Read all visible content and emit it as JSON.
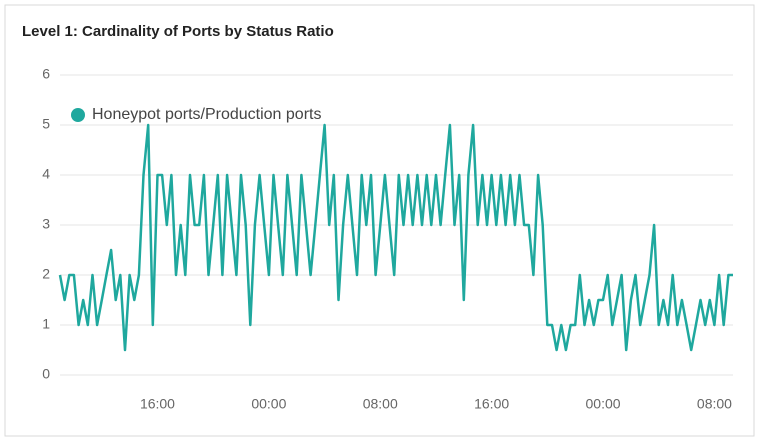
{
  "chart_data": {
    "type": "line",
    "title": "Level 1: Cardinality of Ports by Status Ratio",
    "categories": [
      null,
      null,
      null,
      null,
      null,
      null,
      null,
      null,
      null,
      null,
      null,
      null,
      null,
      null,
      null,
      null,
      null,
      null,
      null,
      null,
      null,
      "16:00",
      null,
      null,
      null,
      null,
      null,
      null,
      null,
      null,
      null,
      null,
      null,
      null,
      null,
      null,
      null,
      null,
      null,
      null,
      null,
      null,
      null,
      null,
      null,
      "00:00",
      null,
      null,
      null,
      null,
      null,
      null,
      null,
      null,
      null,
      null,
      null,
      null,
      null,
      null,
      null,
      null,
      null,
      null,
      null,
      null,
      null,
      null,
      null,
      "08:00",
      null,
      null,
      null,
      null,
      null,
      null,
      null,
      null,
      null,
      null,
      null,
      null,
      null,
      null,
      null,
      null,
      null,
      null,
      null,
      null,
      null,
      null,
      null,
      "16:00",
      null,
      null,
      null,
      null,
      null,
      null,
      null,
      null,
      null,
      null,
      null,
      null,
      null,
      null,
      null,
      null,
      null,
      null,
      null,
      null,
      null,
      null,
      null,
      "00:00",
      null,
      null,
      null,
      null,
      null,
      null,
      null,
      null,
      null,
      null,
      null,
      null,
      null,
      null,
      null,
      null,
      null,
      null,
      null,
      null,
      null,
      null,
      null,
      "08:00",
      null,
      null,
      null,
      null
    ],
    "series": [
      {
        "name": "Honeypot ports/Production ports",
        "color": "#1fa89e",
        "values": [
          2,
          1.5,
          2,
          2,
          1,
          1.5,
          1,
          2,
          1,
          1.5,
          2,
          2.5,
          1.5,
          2,
          0.5,
          2,
          1.5,
          2,
          4,
          5,
          1,
          4,
          4,
          3,
          4,
          2,
          3,
          2,
          4,
          3,
          3,
          4,
          2,
          3,
          4,
          2,
          4,
          3,
          2,
          4,
          3,
          1,
          3,
          4,
          3,
          2,
          4,
          3,
          2,
          4,
          3,
          2,
          4,
          3,
          2,
          3,
          4,
          5,
          3,
          4,
          1.5,
          3,
          4,
          3,
          2,
          4,
          3,
          4,
          2,
          3,
          4,
          3,
          2,
          4,
          3,
          4,
          3,
          4,
          3,
          4,
          3,
          4,
          3,
          4,
          5,
          3,
          4,
          1.5,
          4,
          5,
          3,
          4,
          3,
          4,
          3,
          4,
          3,
          4,
          3,
          4,
          3,
          3,
          2,
          4,
          3,
          1,
          1,
          0.5,
          1,
          0.5,
          1,
          1,
          2,
          1,
          1.5,
          1,
          1.5,
          1.5,
          2,
          1,
          1.5,
          2,
          0.5,
          1.5,
          2,
          1,
          1.5,
          2,
          3,
          1,
          1.5,
          1,
          2,
          1,
          1.5,
          1,
          0.5,
          1,
          1.5,
          1,
          1.5,
          1,
          2,
          1,
          2,
          2
        ]
      }
    ],
    "ylim": [
      0,
      6
    ],
    "yticks": [
      0,
      1,
      2,
      3,
      4,
      5,
      6
    ],
    "grid": true,
    "legend": "top-left"
  }
}
